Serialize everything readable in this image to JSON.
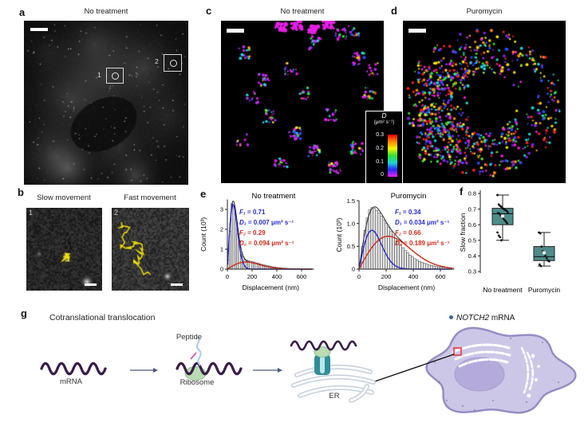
{
  "panels": {
    "a": {
      "label": "a",
      "title": "No treatment",
      "roi1": "1",
      "roi2": "2"
    },
    "b": {
      "label": "b",
      "title_slow": "Slow movement",
      "title_fast": "Fast movement",
      "num1": "1",
      "num2": "2"
    },
    "c": {
      "label": "c",
      "title": "No treatment"
    },
    "d": {
      "label": "d",
      "title": "Puromycin"
    },
    "colorbar": {
      "title": "D",
      "units": "(μm² s⁻¹)",
      "ticks": [
        "0.3",
        "0.2",
        "0.1",
        "0"
      ],
      "colors": [
        "#f00000",
        "#ff8800",
        "#f6f600",
        "#2fdf2f",
        "#1fd6d6",
        "#2a2aff",
        "#f020f0"
      ]
    },
    "e": {
      "label": "e"
    },
    "f": {
      "label": "f"
    },
    "g": {
      "label": "g",
      "title": "Cotranslational translocation",
      "mrna": "mRNA",
      "peptide": "Peptide",
      "ribosome": "Ribosome",
      "er": "ER",
      "legend_gene": "NOTCH2",
      "legend_rest": " mRNA",
      "legend_dot_color": "#33679e"
    }
  },
  "chart_data": [
    {
      "type": "bar",
      "title": "No treatment",
      "xlabel": "Displacement (nm)",
      "ylabel": "Count (10³)",
      "xlim": [
        0,
        700
      ],
      "ylim": [
        0,
        3.5
      ],
      "bin_width": 15,
      "xticks": [
        {
          "v": 0,
          "t": "0"
        },
        {
          "v": 200,
          "t": "200"
        },
        {
          "v": 400,
          "t": "400"
        },
        {
          "v": 600,
          "t": "600"
        }
      ],
      "yticks": [
        {
          "v": 0,
          "t": "0"
        },
        {
          "v": 1,
          "t": "1"
        },
        {
          "v": 2,
          "t": "2"
        },
        {
          "v": 3,
          "t": "3"
        }
      ],
      "bar_values": [
        0.45,
        1.9,
        3.3,
        3.15,
        2.5,
        1.8,
        1.25,
        0.85,
        0.62,
        0.5,
        0.45,
        0.42,
        0.4,
        0.38,
        0.35,
        0.32,
        0.3,
        0.27,
        0.24,
        0.22,
        0.2,
        0.18,
        0.16,
        0.14,
        0.12,
        0.11,
        0.09,
        0.08,
        0.07,
        0.06,
        0.05,
        0.05,
        0.04,
        0.03,
        0.03,
        0.02,
        0.02,
        0.015,
        0.01,
        0.01
      ],
      "fits": [
        {
          "name": "slow",
          "color": "#2a2ad0",
          "A": 3.25,
          "mode": 46,
          "F": 0.71,
          "D": 0.007
        },
        {
          "name": "fast",
          "color": "#d02a1a",
          "A": 0.36,
          "mode": 150,
          "F": 0.29,
          "D": 0.094
        }
      ],
      "fit_labels": [
        {
          "label": "F₁",
          "value": "= 0.71",
          "color": "#2a2ad0"
        },
        {
          "label": "D₁",
          "value": "= 0.007 μm² s⁻¹",
          "color": "#2a2ad0"
        },
        {
          "label": "F₂",
          "value": "= 0.29",
          "color": "#d02a1a"
        },
        {
          "label": "D₂",
          "value": "= 0.094 μm² s⁻¹",
          "color": "#d02a1a"
        }
      ]
    },
    {
      "type": "bar",
      "title": "Puromycin",
      "xlabel": "Displacement (nm)",
      "ylabel": "Count (10³)",
      "xlim": [
        0,
        700
      ],
      "ylim": [
        0,
        1.5
      ],
      "bin_width": 17.5,
      "xticks": [
        {
          "v": 0,
          "t": "0"
        },
        {
          "v": 200,
          "t": "200"
        },
        {
          "v": 400,
          "t": "400"
        },
        {
          "v": 600,
          "t": "600"
        }
      ],
      "yticks": [
        {
          "v": 0,
          "t": "0"
        },
        {
          "v": 0.5,
          "t": "0.5"
        },
        {
          "v": 1,
          "t": "1.0"
        },
        {
          "v": 1.5,
          "t": "1.5"
        }
      ],
      "bar_values": [
        0.15,
        0.5,
        0.85,
        1.12,
        1.3,
        1.35,
        1.33,
        1.29,
        1.23,
        1.16,
        1.08,
        1.0,
        0.92,
        0.83,
        0.75,
        0.67,
        0.6,
        0.53,
        0.47,
        0.41,
        0.36,
        0.31,
        0.27,
        0.23,
        0.2,
        0.17,
        0.15,
        0.13,
        0.11,
        0.09,
        0.08,
        0.07,
        0.06,
        0.05,
        0.045,
        0.04,
        0.035,
        0.03,
        0.025,
        0.02
      ],
      "fits": [
        {
          "name": "slow",
          "color": "#2a2ad0",
          "A": 0.85,
          "mode": 95,
          "F": 0.34,
          "D": 0.034
        },
        {
          "name": "fast",
          "color": "#d02a1a",
          "A": 0.72,
          "mode": 215,
          "F": 0.66,
          "D": 0.189
        }
      ],
      "fit_labels": [
        {
          "label": "F₁",
          "value": "= 0.34",
          "color": "#2a2ad0"
        },
        {
          "label": "D₁",
          "value": "= 0.034 μm² s⁻¹",
          "color": "#2a2ad0"
        },
        {
          "label": "F₂",
          "value": "= 0.66",
          "color": "#d02a1a"
        },
        {
          "label": "D₂",
          "value": "= 0.189 μm² s⁻¹",
          "color": "#d02a1a"
        }
      ]
    },
    {
      "type": "box",
      "ylabel": "Slow fraction",
      "ylim": [
        0.3,
        0.8
      ],
      "box_color": "#4e8c8c",
      "yticks": [
        {
          "v": 0.3,
          "t": "0.3"
        },
        {
          "v": 0.4,
          "t": "0.4"
        },
        {
          "v": 0.5,
          "t": "0.5"
        },
        {
          "v": 0.6,
          "t": "0.6"
        },
        {
          "v": 0.7,
          "t": "0.7"
        },
        {
          "v": 0.8,
          "t": "0.8"
        }
      ],
      "groups": [
        {
          "label": "No treatment",
          "q1": 0.6,
          "median": 0.67,
          "q3": 0.705,
          "whisker_low": 0.5,
          "whisker_high": 0.79,
          "mean": 0.655,
          "points": [
            0.79,
            0.73,
            0.72,
            0.715,
            0.705,
            0.7,
            0.695,
            0.69,
            0.68,
            0.675,
            0.67,
            0.66,
            0.65,
            0.64,
            0.63,
            0.62,
            0.61,
            0.55,
            0.53,
            0.52,
            0.5
          ]
        },
        {
          "label": "Puromycin",
          "q1": 0.37,
          "median": 0.395,
          "q3": 0.46,
          "whisker_low": 0.335,
          "whisker_high": 0.55,
          "mean": 0.42,
          "points": [
            0.55,
            0.545,
            0.46,
            0.43,
            0.42,
            0.4,
            0.385,
            0.37,
            0.365,
            0.345,
            0.335
          ]
        }
      ]
    }
  ]
}
